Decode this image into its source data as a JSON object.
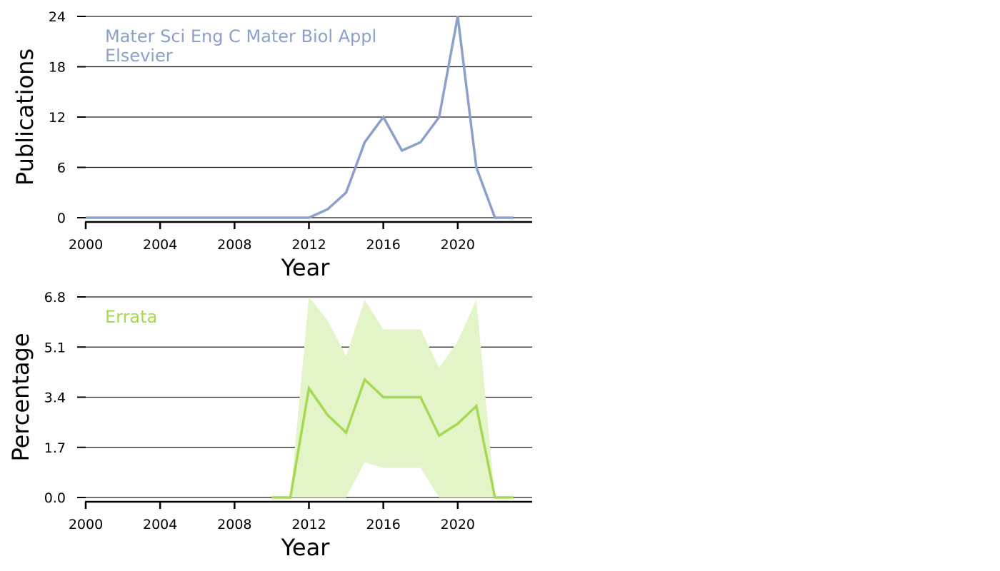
{
  "chart_data": [
    {
      "type": "line",
      "annotation": [
        "Mater Sci Eng C Mater Biol Appl",
        "Elsevier"
      ],
      "xlabel": "Year",
      "ylabel": "Publications",
      "xlim": [
        2000,
        2024
      ],
      "ylim": [
        0,
        24
      ],
      "x_ticks": [
        "2000",
        "2004",
        "2008",
        "2012",
        "2016",
        "2020"
      ],
      "y_ticks": [
        "0",
        "6",
        "12",
        "18",
        "24"
      ],
      "grid": "horizontal",
      "color": "#8da0cb",
      "x": [
        2000,
        2001,
        2002,
        2003,
        2004,
        2005,
        2006,
        2007,
        2008,
        2009,
        2010,
        2011,
        2012,
        2013,
        2014,
        2015,
        2016,
        2017,
        2018,
        2019,
        2020,
        2021,
        2022,
        2023
      ],
      "values": [
        0,
        0,
        0,
        0,
        0,
        0,
        0,
        0,
        0,
        0,
        0,
        0,
        0,
        1,
        3,
        9,
        12,
        8,
        9,
        12,
        24,
        6,
        0,
        0
      ]
    },
    {
      "type": "area",
      "annotation": [
        "Errata"
      ],
      "xlabel": "Year",
      "ylabel": "Percentage",
      "xlim": [
        2000,
        2024
      ],
      "ylim": [
        0,
        6.8
      ],
      "x_ticks": [
        "2000",
        "2004",
        "2008",
        "2012",
        "2016",
        "2020"
      ],
      "y_ticks": [
        "0.0",
        "1.7",
        "3.4",
        "5.1",
        "6.8"
      ],
      "grid": "horizontal",
      "color": "#a6d854",
      "band_color": "#e3f4c9",
      "x": [
        2010,
        2011,
        2012,
        2013,
        2014,
        2015,
        2016,
        2017,
        2018,
        2019,
        2020,
        2021,
        2022,
        2023
      ],
      "values": [
        0,
        0,
        3.7,
        2.8,
        2.2,
        4.0,
        3.4,
        3.4,
        3.4,
        2.1,
        2.5,
        3.1,
        0,
        0
      ],
      "band_lower": [
        0,
        0,
        0,
        0,
        0,
        1.2,
        1.0,
        1.0,
        1.0,
        0,
        0,
        0,
        0,
        0
      ],
      "band_upper": [
        0,
        0,
        6.8,
        6.0,
        4.8,
        6.7,
        5.7,
        5.7,
        5.7,
        4.4,
        5.3,
        6.7,
        0,
        0
      ]
    }
  ]
}
